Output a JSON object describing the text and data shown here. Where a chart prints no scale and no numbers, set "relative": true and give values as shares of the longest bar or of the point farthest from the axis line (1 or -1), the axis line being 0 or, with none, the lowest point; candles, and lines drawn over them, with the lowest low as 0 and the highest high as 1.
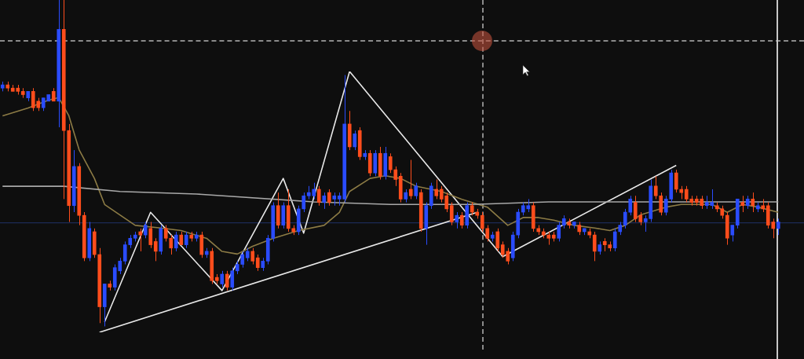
{
  "chart_data": [
    {
      "type": "candlestick",
      "relative": true,
      "tick_labels": false,
      "grid": false,
      "legend": false,
      "categories": [
        null,
        null,
        null,
        null,
        null,
        null,
        null,
        null,
        null,
        null,
        null,
        null,
        null,
        null,
        null,
        null,
        null,
        null,
        null,
        null,
        null,
        null,
        null,
        null,
        null,
        null,
        null,
        null,
        null,
        null,
        null,
        null,
        null,
        null,
        null,
        null,
        null,
        null,
        null,
        null,
        null,
        null,
        null,
        null,
        null,
        null,
        null,
        null,
        null,
        null,
        null,
        null,
        null,
        null,
        null,
        null,
        null,
        null,
        null,
        null,
        null,
        null,
        null,
        null,
        null,
        null,
        null,
        null,
        null,
        null,
        null,
        null,
        null,
        null,
        null,
        null,
        null,
        null,
        null,
        null,
        null,
        null,
        null,
        null,
        null,
        null,
        null,
        null,
        null,
        null,
        null,
        null,
        null,
        null,
        null,
        null,
        null,
        null,
        null,
        null,
        null,
        null,
        null,
        null,
        null,
        null,
        null,
        null,
        null,
        null,
        null,
        null,
        null,
        null,
        null,
        null,
        null,
        null,
        null,
        null,
        null,
        null,
        null,
        null,
        null,
        null,
        null,
        null,
        null,
        null,
        null,
        null,
        null,
        null,
        null,
        null,
        null,
        null,
        null,
        null,
        null,
        null,
        null,
        null,
        null,
        null,
        null,
        null,
        null,
        null,
        null,
        null,
        null
      ],
      "ohlc": [
        [
          0.73,
          0.75,
          0.72,
          0.74
        ],
        [
          0.74,
          0.75,
          0.72,
          0.73
        ],
        [
          0.73,
          0.74,
          0.72,
          0.72
        ],
        [
          0.73,
          0.74,
          0.71,
          0.72
        ],
        [
          0.72,
          0.73,
          0.7,
          0.71
        ],
        [
          0.7,
          0.72,
          0.69,
          0.72
        ],
        [
          0.72,
          0.73,
          0.66,
          0.67
        ],
        [
          0.69,
          0.7,
          0.66,
          0.67
        ],
        [
          0.67,
          0.7,
          0.66,
          0.7
        ],
        [
          0.69,
          0.71,
          0.69,
          0.71
        ],
        [
          0.72,
          0.73,
          0.69,
          0.69
        ],
        [
          0.69,
          1,
          0.61,
          0.91
        ],
        [
          0.91,
          1,
          0.39,
          0.6
        ],
        [
          0.6,
          0.62,
          0.32,
          0.37
        ],
        [
          0.37,
          0.54,
          0.35,
          0.49
        ],
        [
          0.49,
          0.5,
          0.31,
          0.34
        ],
        [
          0.34,
          0.35,
          0.2,
          0.21
        ],
        [
          0.21,
          0.32,
          0.2,
          0.3
        ],
        [
          0.29,
          0.3,
          0.21,
          0.22
        ],
        [
          0.22,
          0.24,
          0.01,
          0.06
        ],
        [
          0.06,
          0.13,
          0,
          0.13
        ],
        [
          0.13,
          0.14,
          0.11,
          0.12
        ],
        [
          0.12,
          0.19,
          0.11,
          0.18
        ],
        [
          0.17,
          0.21,
          0.16,
          0.2
        ],
        [
          0.2,
          0.26,
          0.19,
          0.25
        ],
        [
          0.25,
          0.28,
          0.24,
          0.27
        ],
        [
          0.27,
          0.29,
          0.26,
          0.28
        ],
        [
          0.29,
          0.3,
          0.23,
          0.28
        ],
        [
          0.28,
          0.32,
          0.27,
          0.31
        ],
        [
          0.3,
          0.32,
          0.24,
          0.25
        ],
        [
          0.26,
          0.27,
          0.2,
          0.23
        ],
        [
          0.23,
          0.31,
          0.22,
          0.3
        ],
        [
          0.3,
          0.31,
          0.26,
          0.27
        ],
        [
          0.27,
          0.28,
          0.22,
          0.24
        ],
        [
          0.24,
          0.29,
          0.23,
          0.28
        ],
        [
          0.28,
          0.29,
          0.25,
          0.25
        ],
        [
          0.25,
          0.29,
          0.24,
          0.28
        ],
        [
          0.28,
          0.29,
          0.26,
          0.27
        ],
        [
          0.27,
          0.29,
          0.26,
          0.28
        ],
        [
          0.28,
          0.29,
          0.21,
          0.22
        ],
        [
          0.22,
          0.24,
          0.21,
          0.23
        ],
        [
          0.23,
          0.24,
          0.13,
          0.14
        ],
        [
          0.15,
          0.16,
          0.13,
          0.14
        ],
        [
          0.13,
          0.17,
          0.12,
          0.16
        ],
        [
          0.16,
          0.17,
          0.11,
          0.12
        ],
        [
          0.12,
          0.18,
          0.11,
          0.17
        ],
        [
          0.17,
          0.2,
          0.16,
          0.19
        ],
        [
          0.19,
          0.23,
          0.18,
          0.22
        ],
        [
          0.21,
          0.24,
          0.2,
          0.23
        ],
        [
          0.23,
          0.24,
          0.19,
          0.2
        ],
        [
          0.21,
          0.22,
          0.17,
          0.18
        ],
        [
          0.18,
          0.21,
          0.17,
          0.2
        ],
        [
          0.2,
          0.28,
          0.19,
          0.27
        ],
        [
          0.27,
          0.38,
          0.26,
          0.37
        ],
        [
          0.37,
          0.41,
          0.3,
          0.31
        ],
        [
          0.31,
          0.38,
          0.3,
          0.37
        ],
        [
          0.37,
          0.42,
          0.29,
          0.3
        ],
        [
          0.3,
          0.31,
          0.28,
          0.29
        ],
        [
          0.29,
          0.37,
          0.28,
          0.36
        ],
        [
          0.36,
          0.41,
          0.35,
          0.4
        ],
        [
          0.4,
          0.43,
          0.39,
          0.41
        ],
        [
          0.4,
          0.44,
          0.39,
          0.42
        ],
        [
          0.42,
          0.43,
          0.37,
          0.38
        ],
        [
          0.38,
          0.41,
          0.36,
          0.4
        ],
        [
          0.41,
          0.42,
          0.37,
          0.38
        ],
        [
          0.39,
          0.41,
          0.37,
          0.4
        ],
        [
          0.39,
          0.41,
          0.37,
          0.4
        ],
        [
          0.39,
          0.77,
          0.38,
          0.62
        ],
        [
          0.62,
          0.66,
          0.54,
          0.55
        ],
        [
          0.55,
          0.6,
          0.54,
          0.59
        ],
        [
          0.6,
          0.61,
          0.51,
          0.52
        ],
        [
          0.52,
          0.54,
          0.51,
          0.53
        ],
        [
          0.53,
          0.54,
          0.46,
          0.47
        ],
        [
          0.47,
          0.54,
          0.46,
          0.53
        ],
        [
          0.53,
          0.55,
          0.45,
          0.46
        ],
        [
          0.46,
          0.55,
          0.45,
          0.53
        ],
        [
          0.52,
          0.53,
          0.47,
          0.48
        ],
        [
          0.48,
          0.49,
          0.43,
          0.45
        ],
        [
          0.46,
          0.47,
          0.38,
          0.39
        ],
        [
          0.39,
          0.42,
          0.38,
          0.41
        ],
        [
          0.42,
          0.51,
          0.39,
          0.4
        ],
        [
          0.4,
          0.44,
          0.39,
          0.43
        ],
        [
          0.41,
          0.42,
          0.29,
          0.3
        ],
        [
          0.3,
          0.38,
          0.25,
          0.37
        ],
        [
          0.37,
          0.44,
          0.36,
          0.43
        ],
        [
          0.42,
          0.45,
          0.39,
          0.4
        ],
        [
          0.42,
          0.43,
          0.38,
          0.39
        ],
        [
          0.4,
          0.41,
          0.35,
          0.36
        ],
        [
          0.37,
          0.38,
          0.31,
          0.32
        ],
        [
          0.32,
          0.35,
          0.3,
          0.34
        ],
        [
          0.34,
          0.35,
          0.3,
          0.31
        ],
        [
          0.31,
          0.38,
          0.3,
          0.37
        ],
        [
          0.37,
          0.38,
          0.34,
          0.35
        ],
        [
          0.35,
          0.36,
          0.33,
          0.34
        ],
        [
          0.34,
          0.35,
          0.29,
          0.3
        ],
        [
          0.3,
          0.31,
          0.26,
          0.27
        ],
        [
          0.27,
          0.29,
          0.26,
          0.28
        ],
        [
          0.29,
          0.3,
          0.23,
          0.24
        ],
        [
          0.25,
          0.26,
          0.21,
          0.22
        ],
        [
          0.23,
          0.24,
          0.19,
          0.2
        ],
        [
          0.21,
          0.29,
          0.2,
          0.28
        ],
        [
          0.28,
          0.36,
          0.27,
          0.35
        ],
        [
          0.35,
          0.38,
          0.34,
          0.37
        ],
        [
          0.36,
          0.39,
          0.35,
          0.37
        ],
        [
          0.37,
          0.38,
          0.29,
          0.3
        ],
        [
          0.3,
          0.31,
          0.28,
          0.29
        ],
        [
          0.29,
          0.3,
          0.27,
          0.28
        ],
        [
          0.28,
          0.29,
          0.25,
          0.27
        ],
        [
          0.28,
          0.29,
          0.26,
          0.27
        ],
        [
          0.27,
          0.32,
          0.26,
          0.31
        ],
        [
          0.31,
          0.34,
          0.3,
          0.33
        ],
        [
          0.32,
          0.33,
          0.3,
          0.31
        ],
        [
          0.31,
          0.32,
          0.3,
          0.32
        ],
        [
          0.31,
          0.32,
          0.28,
          0.29
        ],
        [
          0.29,
          0.3,
          0.28,
          0.3
        ],
        [
          0.29,
          0.3,
          0.27,
          0.28
        ],
        [
          0.28,
          0.29,
          0.2,
          0.23
        ],
        [
          0.23,
          0.26,
          0.22,
          0.25
        ],
        [
          0.26,
          0.27,
          0.23,
          0.25
        ],
        [
          0.25,
          0.26,
          0.23,
          0.24
        ],
        [
          0.24,
          0.3,
          0.23,
          0.29
        ],
        [
          0.29,
          0.32,
          0.28,
          0.31
        ],
        [
          0.31,
          0.36,
          0.3,
          0.35
        ],
        [
          0.35,
          0.4,
          0.34,
          0.39
        ],
        [
          0.38,
          0.4,
          0.32,
          0.33
        ],
        [
          0.34,
          0.35,
          0.31,
          0.32
        ],
        [
          0.32,
          0.34,
          0.29,
          0.33
        ],
        [
          0.33,
          0.45,
          0.32,
          0.43
        ],
        [
          0.43,
          0.46,
          0.39,
          0.4
        ],
        [
          0.4,
          0.41,
          0.34,
          0.35
        ],
        [
          0.35,
          0.4,
          0.34,
          0.39
        ],
        [
          0.39,
          0.48,
          0.38,
          0.47
        ],
        [
          0.47,
          0.48,
          0.41,
          0.42
        ],
        [
          0.42,
          0.43,
          0.39,
          0.41
        ],
        [
          0.42,
          0.43,
          0.38,
          0.39
        ],
        [
          0.39,
          0.4,
          0.37,
          0.38
        ],
        [
          0.39,
          0.4,
          0.37,
          0.38
        ],
        [
          0.39,
          0.4,
          0.36,
          0.37
        ],
        [
          0.37,
          0.4,
          0.36,
          0.38
        ],
        [
          0.37,
          0.42,
          0.36,
          0.38
        ],
        [
          0.37,
          0.38,
          0.35,
          0.36
        ],
        [
          0.36,
          0.37,
          0.33,
          0.34
        ],
        [
          0.34,
          0.35,
          0.25,
          0.27
        ],
        [
          0.28,
          0.31,
          0.26,
          0.31
        ],
        [
          0.31,
          0.39,
          0.3,
          0.39
        ],
        [
          0.38,
          0.4,
          0.35,
          0.37
        ],
        [
          0.37,
          0.4,
          0.36,
          0.39
        ],
        [
          0.39,
          0.41,
          0.35,
          0.37
        ],
        [
          0.36,
          0.38,
          0.35,
          0.37
        ],
        [
          0.37,
          0.39,
          0.35,
          0.36
        ],
        [
          0.37,
          0.38,
          0.3,
          0.31
        ],
        [
          0.32,
          0.33,
          0.27,
          0.3
        ],
        [
          0.3,
          0.33,
          0.28,
          0.32
        ]
      ],
      "colors": [
        "#2a4cff",
        "#ff4d1c",
        "#ff4d1c",
        "#ff4d1c",
        "#ff4d1c",
        "#2a4cff",
        "#ff4d1c",
        "#ff4d1c",
        "#2a4cff",
        "#2a4cff",
        "#ff4d1c",
        "#2a4cff",
        "#ff4d1c",
        "#ff4d1c",
        "#2a4cff",
        "#ff4d1c",
        "#ff4d1c",
        "#2a4cff",
        "#ff4d1c",
        "#ff4d1c",
        "#2a4cff",
        "#ff4d1c",
        "#2a4cff",
        "#2a4cff",
        "#2a4cff",
        "#2a4cff",
        "#2a4cff",
        "#ff4d1c",
        "#2a4cff",
        "#ff4d1c",
        "#ff4d1c",
        "#2a4cff",
        "#ff4d1c",
        "#ff4d1c",
        "#2a4cff",
        "#ff4d1c",
        "#2a4cff",
        "#ff4d1c",
        "#2a4cff",
        "#ff4d1c",
        "#2a4cff",
        "#ff4d1c",
        "#ff4d1c",
        "#2a4cff",
        "#ff4d1c",
        "#2a4cff",
        "#2a4cff",
        "#2a4cff",
        "#2a4cff",
        "#ff4d1c",
        "#ff4d1c",
        "#2a4cff",
        "#2a4cff",
        "#2a4cff",
        "#ff4d1c",
        "#2a4cff",
        "#ff4d1c",
        "#ff4d1c",
        "#2a4cff",
        "#2a4cff",
        "#2a4cff",
        "#2a4cff",
        "#ff4d1c",
        "#2a4cff",
        "#ff4d1c",
        "#2a4cff",
        "#2a4cff",
        "#2a4cff",
        "#ff4d1c",
        "#2a4cff",
        "#ff4d1c",
        "#2a4cff",
        "#ff4d1c",
        "#2a4cff",
        "#ff4d1c",
        "#2a4cff",
        "#ff4d1c",
        "#ff4d1c",
        "#ff4d1c",
        "#2a4cff",
        "#ff4d1c",
        "#2a4cff",
        "#ff4d1c",
        "#2a4cff",
        "#2a4cff",
        "#ff4d1c",
        "#ff4d1c",
        "#ff4d1c",
        "#ff4d1c",
        "#2a4cff",
        "#ff4d1c",
        "#2a4cff",
        "#ff4d1c",
        "#ff4d1c",
        "#ff4d1c",
        "#ff4d1c",
        "#2a4cff",
        "#ff4d1c",
        "#ff4d1c",
        "#ff4d1c",
        "#2a4cff",
        "#2a4cff",
        "#2a4cff",
        "#2a4cff",
        "#ff4d1c",
        "#ff4d1c",
        "#ff4d1c",
        "#ff4d1c",
        "#ff4d1c",
        "#2a4cff",
        "#2a4cff",
        "#ff4d1c",
        "#2a4cff",
        "#ff4d1c",
        "#2a4cff",
        "#ff4d1c",
        "#ff4d1c",
        "#2a4cff",
        "#ff4d1c",
        "#ff4d1c",
        "#2a4cff",
        "#2a4cff",
        "#2a4cff",
        "#2a4cff",
        "#ff4d1c",
        "#ff4d1c",
        "#2a4cff",
        "#2a4cff",
        "#ff4d1c",
        "#ff4d1c",
        "#2a4cff",
        "#2a4cff",
        "#ff4d1c",
        "#ff4d1c",
        "#ff4d1c",
        "#ff4d1c",
        "#ff4d1c",
        "#ff4d1c",
        "#2a4cff",
        "#2a4cff",
        "#ff4d1c",
        "#ff4d1c",
        "#ff4d1c",
        "#2a4cff",
        "#2a4cff",
        "#ff4d1c",
        "#2a4cff",
        "#ff4d1c",
        "#2a4cff",
        "#ff4d1c",
        "#ff4d1c",
        "#ff4d1c",
        "#2a4cff"
      ]
    },
    {
      "type": "line",
      "relative": true,
      "tick_labels": false,
      "grid": false,
      "legend": false,
      "ref_lines": [
        {
          "axis": "y",
          "value": 0.42,
          "color": "#1c2a55",
          "line_style": "solid"
        }
      ],
      "categories": [
        null,
        null,
        null,
        null,
        null,
        null,
        null,
        null,
        null,
        null,
        null,
        null,
        null,
        null,
        null,
        null,
        null,
        null,
        null,
        null,
        null,
        null,
        null,
        null,
        null,
        null,
        null,
        null,
        null,
        null,
        null,
        null,
        null,
        null,
        null,
        null,
        null,
        null,
        null,
        null,
        null,
        null,
        null,
        null,
        null,
        null,
        null,
        null,
        null,
        null,
        null,
        null,
        null,
        null,
        null,
        null,
        null,
        null,
        null,
        null,
        null,
        null,
        null,
        null,
        null,
        null,
        null,
        null,
        null,
        null,
        null,
        null,
        null,
        null,
        null,
        null,
        null,
        null,
        null,
        null,
        null,
        null,
        null,
        null,
        null,
        null,
        null,
        null,
        null,
        null,
        null,
        null,
        null,
        null,
        null,
        null,
        null,
        null,
        null,
        null,
        null,
        null,
        null,
        null,
        null,
        null,
        null,
        null,
        null,
        null,
        null,
        null,
        null,
        null,
        null,
        null,
        null,
        null,
        null,
        null,
        null,
        null,
        null,
        null,
        null,
        null,
        null,
        null,
        null,
        null,
        null,
        null,
        null,
        null,
        null,
        null,
        null,
        null,
        null,
        null,
        null,
        null,
        null,
        null,
        null,
        null,
        null,
        null,
        null,
        null,
        null,
        null,
        null
      ],
      "series": [
        {
          "color": "#a8a8a8",
          "values": [
            0.56,
            null,
            null,
            null,
            null,
            null,
            null,
            null,
            null,
            null,
            null,
            null,
            0.56,
            null,
            null,
            null,
            null,
            null,
            null,
            null,
            null,
            null,
            null,
            0.54,
            null,
            null,
            null,
            null,
            null,
            null,
            null,
            null,
            null,
            null,
            null,
            null,
            null,
            null,
            0.53,
            null,
            null,
            null,
            null,
            null,
            null,
            null,
            null,
            null,
            null,
            null,
            null,
            null,
            null,
            null,
            null,
            null,
            null,
            null,
            null,
            null,
            null,
            0.5,
            null,
            null,
            null,
            null,
            null,
            null,
            null,
            null,
            null,
            null,
            null,
            null,
            null,
            null,
            0.49,
            null,
            null,
            null,
            null,
            null,
            null,
            null,
            null,
            null,
            null,
            null,
            null,
            null,
            null,
            null,
            0.49,
            null,
            null,
            null,
            null,
            null,
            null,
            null,
            null,
            null,
            null,
            null,
            null,
            null,
            null,
            0.5,
            null,
            null,
            null,
            null,
            null,
            null,
            null,
            null,
            null,
            null,
            null,
            null,
            null,
            null,
            0.5,
            null,
            null,
            null,
            null,
            null,
            null,
            null,
            null,
            null,
            null,
            null,
            null,
            null,
            null,
            0.5,
            null,
            null,
            null,
            null,
            null,
            null,
            null,
            null,
            null,
            null,
            null,
            null,
            null,
            null,
            0.5
          ]
        },
        {
          "color": "#8c7b45",
          "values": [
            0.83,
            null,
            null,
            null,
            null,
            0.86,
            null,
            null,
            null,
            0.89,
            null,
            0.9,
            null,
            0.83,
            null,
            0.7,
            null,
            null,
            0.59,
            null,
            0.49,
            null,
            null,
            0.45,
            null,
            null,
            0.41,
            null,
            null,
            null,
            null,
            0.4,
            null,
            null,
            null,
            0.39,
            null,
            null,
            null,
            null,
            0.36,
            null,
            null,
            0.31,
            null,
            null,
            0.3,
            null,
            null,
            0.33,
            null,
            null,
            null,
            0.36,
            null,
            null,
            null,
            null,
            0.39,
            null,
            null,
            null,
            null,
            0.41,
            null,
            null,
            0.46,
            null,
            0.54,
            null,
            null,
            null,
            0.59,
            null,
            null,
            0.6,
            null,
            null,
            0.59,
            null,
            null,
            0.56,
            null,
            null,
            null,
            null,
            0.54,
            null,
            null,
            null,
            0.51,
            null,
            null,
            null,
            null,
            0.48,
            null,
            null,
            null,
            0.41,
            null,
            null,
            0.44,
            null,
            null,
            0.44,
            null,
            null,
            0.43,
            null,
            null,
            null,
            0.41,
            null,
            null,
            null,
            0.4,
            null,
            null,
            0.39,
            null,
            null,
            0.41,
            null,
            null,
            0.45,
            null,
            null,
            null,
            null,
            0.48,
            null,
            null,
            0.49,
            null,
            null,
            0.49,
            null,
            null,
            0.49,
            null,
            null,
            0.46,
            null,
            null,
            0.49,
            null,
            null,
            0.48,
            null,
            null,
            null,
            0.46
          ]
        },
        {
          "color": "#e8e8e8",
          "values": [
            null,
            null,
            null,
            null,
            null,
            null,
            null,
            null,
            null,
            null,
            null,
            null,
            null,
            null,
            null,
            null,
            null,
            null,
            null,
            null,
            0.04,
            null,
            null,
            null,
            null,
            null,
            null,
            null,
            null,
            0.46,
            null,
            null,
            null,
            null,
            null,
            null,
            null,
            null,
            null,
            null,
            null,
            null,
            null,
            0.16,
            null,
            null,
            null,
            null,
            null,
            null,
            null,
            null,
            null,
            null,
            null,
            0.59,
            null,
            null,
            null,
            0.38,
            null,
            null,
            null,
            null,
            null,
            null,
            null,
            null,
            1,
            null,
            null,
            null,
            null,
            null,
            null,
            null,
            null,
            null,
            null,
            null,
            null,
            null,
            null,
            null,
            null,
            null,
            null,
            null,
            null,
            null,
            null,
            null,
            null,
            null,
            null,
            null,
            null,
            null,
            0.29,
            null,
            null,
            null,
            null,
            null,
            null,
            null,
            null,
            null,
            null,
            null,
            null,
            null,
            null,
            null,
            null,
            null,
            null,
            null,
            null,
            null,
            null,
            null,
            null,
            null,
            null,
            null,
            null,
            null,
            null,
            null,
            null,
            null,
            0.64,
            null,
            null,
            null,
            null,
            null,
            null,
            null,
            null,
            null,
            null,
            null,
            null,
            null,
            null,
            null,
            null,
            null,
            null,
            null,
            null
          ]
        },
        {
          "color": "#e8e8e8",
          "values": [
            null,
            null,
            null,
            null,
            null,
            null,
            null,
            null,
            null,
            null,
            null,
            null,
            null,
            null,
            null,
            null,
            null,
            null,
            null,
            0,
            null,
            null,
            null,
            null,
            null,
            null,
            null,
            null,
            null,
            null,
            null,
            null,
            null,
            null,
            null,
            null,
            null,
            null,
            null,
            null,
            null,
            null,
            null,
            null,
            null,
            null,
            null,
            null,
            null,
            null,
            null,
            null,
            null,
            null,
            null,
            null,
            null,
            null,
            null,
            null,
            null,
            null,
            null,
            null,
            null,
            null,
            null,
            null,
            null,
            null,
            null,
            null,
            null,
            null,
            null,
            null,
            null,
            null,
            null,
            null,
            null,
            null,
            null,
            null,
            null,
            null,
            null,
            null,
            null,
            null,
            null,
            null,
            null,
            0.46,
            null,
            null,
            null,
            null,
            null,
            null,
            null,
            null,
            null,
            null,
            null,
            null,
            null,
            null,
            null,
            null,
            null,
            null,
            null,
            null,
            null,
            null,
            null,
            null,
            null,
            null,
            null,
            null,
            null,
            null,
            null,
            null,
            null,
            null,
            null,
            null,
            null,
            null,
            null,
            null,
            null,
            null,
            null,
            null,
            null,
            null,
            null,
            null,
            null,
            null,
            null,
            null,
            null,
            null,
            null,
            null,
            null,
            null,
            null
          ]
        }
      ]
    }
  ]
}
